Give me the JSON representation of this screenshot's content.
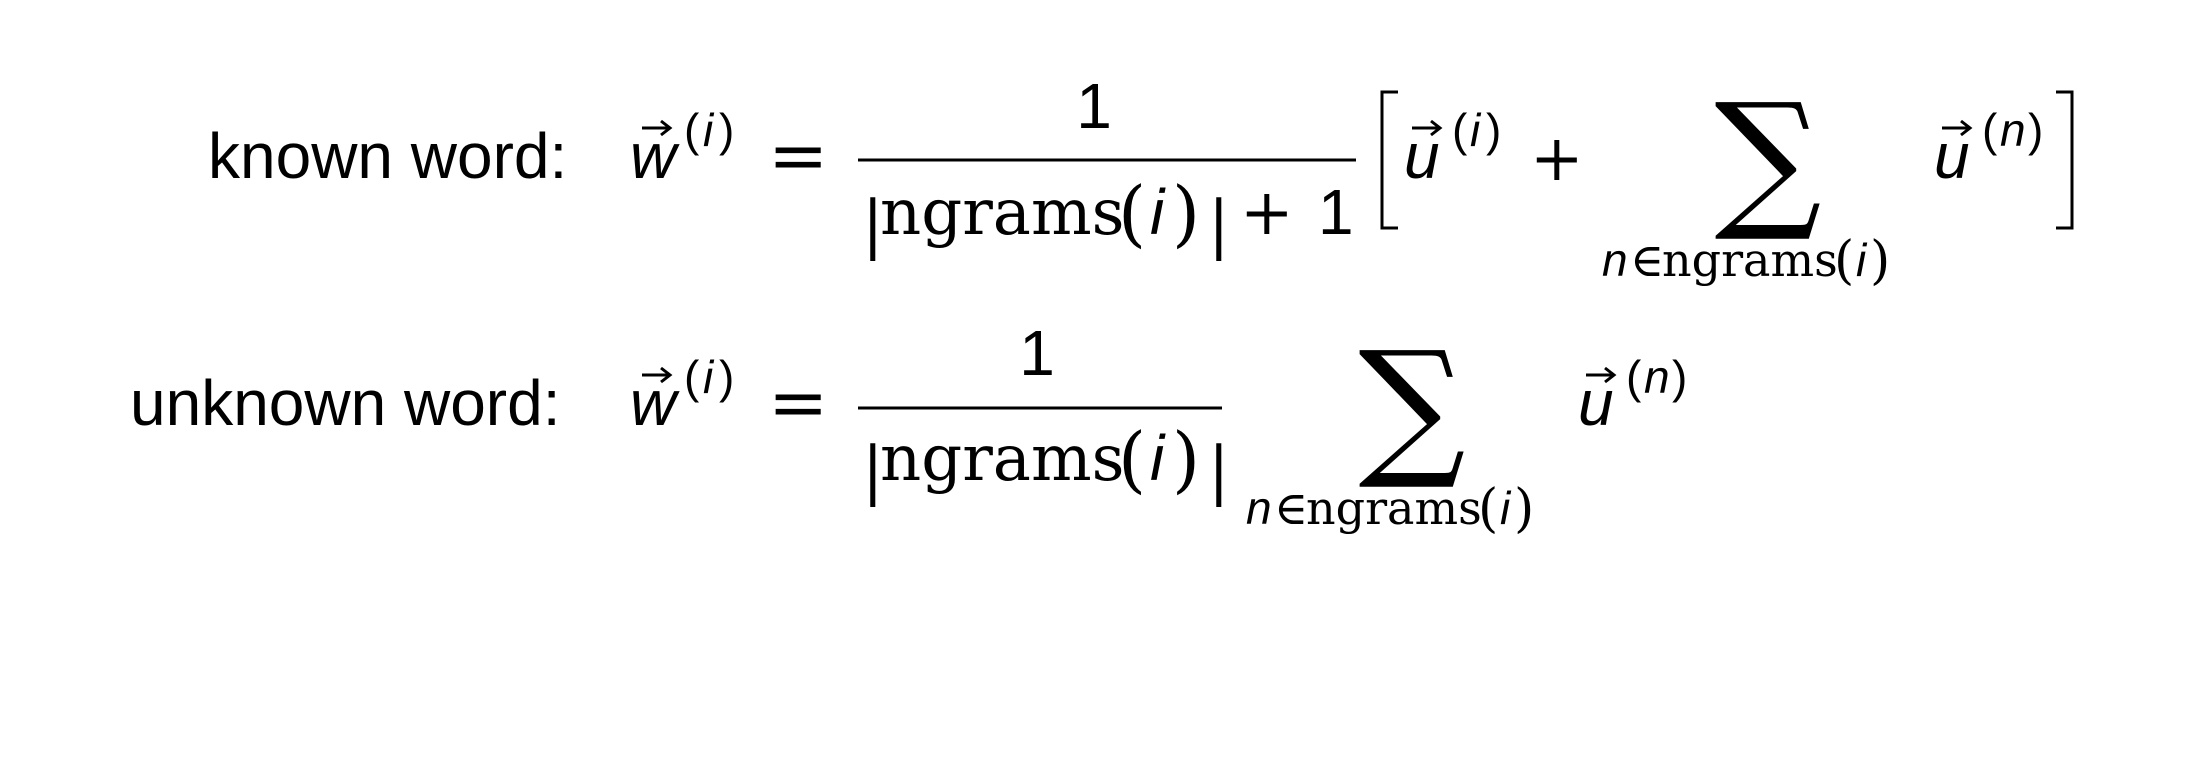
{
  "equations": {
    "known": {
      "label": "known word:",
      "lhs_var": "w",
      "sup_open": "(",
      "sup_idx": "i",
      "sup_close": ")",
      "equals": "=",
      "numerator": "1",
      "den_bar": "|",
      "den_func": "ngrams",
      "den_open": "(",
      "den_idx": "i",
      "den_close": ")",
      "den_bar_close": "|",
      "den_plus": "+",
      "den_one": "1",
      "bracket_open": "[",
      "term_var": "u",
      "term_sup_open": "(",
      "term_sup_idx": "i",
      "term_sup_close": ")",
      "plus": "+",
      "sum": "∑",
      "sub_n": "n",
      "sub_in": "∈",
      "sub_func": "ngrams",
      "sub_open": "(",
      "sub_idx": "i",
      "sub_close": ")",
      "sum_var": "u",
      "sum_sup_open": "(",
      "sum_sup_idx": "n",
      "sum_sup_close": ")",
      "bracket_close": "]"
    },
    "unknown": {
      "label": "unknown word:",
      "lhs_var": "w",
      "sup_open": "(",
      "sup_idx": "i",
      "sup_close": ")",
      "equals": "=",
      "numerator": "1",
      "den_bar": "|",
      "den_func": "ngrams",
      "den_open": "(",
      "den_idx": "i",
      "den_close": ")",
      "den_bar_close": "|",
      "sum": "∑",
      "sub_n": "n",
      "sub_in": "∈",
      "sub_func": "ngrams",
      "sub_open": "(",
      "sub_idx": "i",
      "sub_close": ")",
      "sum_var": "u",
      "sum_sup_open": "(",
      "sum_sup_idx": "n",
      "sum_sup_close": ")"
    }
  }
}
